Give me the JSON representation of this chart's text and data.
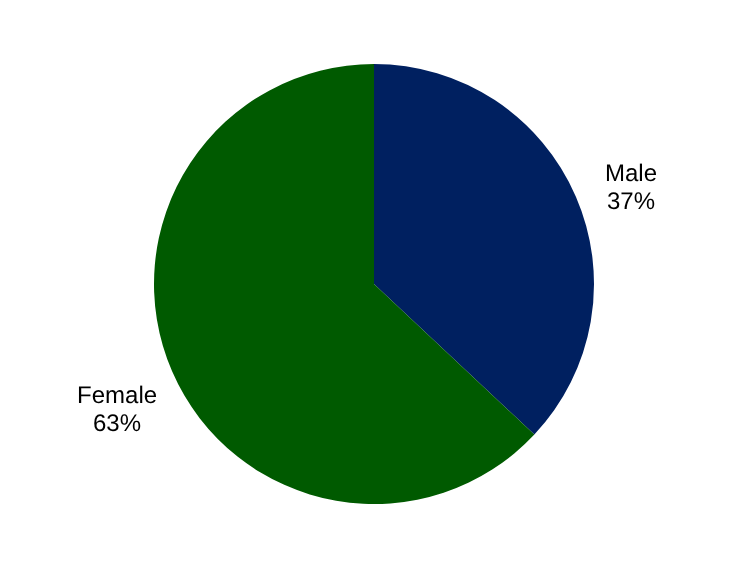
{
  "chart_data": {
    "type": "pie",
    "categories": [
      "Male",
      "Female"
    ],
    "values": [
      37,
      63
    ],
    "colors": [
      "#002060",
      "#005a00"
    ],
    "value_labels": [
      "37%",
      "63%"
    ],
    "legend": false
  }
}
